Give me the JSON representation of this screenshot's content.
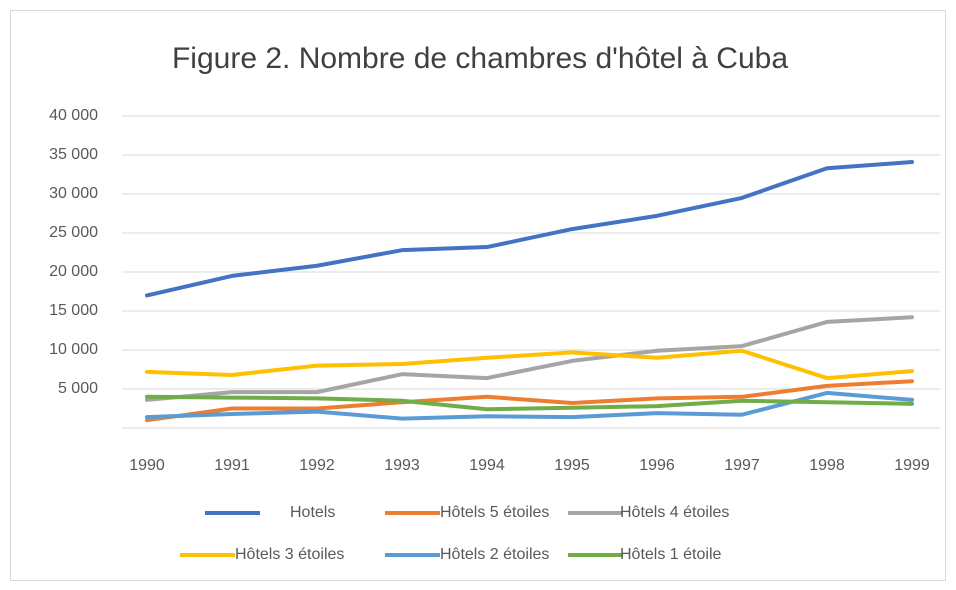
{
  "chart_data": {
    "type": "line",
    "title": "Figure 2. Nombre de chambres d'hôtel à Cuba",
    "categories": [
      "1990",
      "1991",
      "1992",
      "1993",
      "1994",
      "1995",
      "1996",
      "1997",
      "1998",
      "1999"
    ],
    "series": [
      {
        "name": "Hotels",
        "color": "#4472c4",
        "values": [
          17000,
          19500,
          20800,
          22800,
          23200,
          25500,
          27200,
          29500,
          33300,
          34100
        ]
      },
      {
        "name": "Hôtels 5 étoiles",
        "color": "#ed7d31",
        "values": [
          1000,
          2500,
          2500,
          3300,
          4000,
          3200,
          3800,
          4000,
          5400,
          6000
        ]
      },
      {
        "name": "Hôtels 4 étoiles",
        "color": "#a5a5a5",
        "values": [
          3600,
          4600,
          4600,
          6900,
          6400,
          8600,
          9900,
          10500,
          13600,
          14200
        ]
      },
      {
        "name": "Hôtels 3 étoiles",
        "color": "#ffc000",
        "values": [
          7200,
          6800,
          8000,
          8200,
          9000,
          9700,
          9000,
          9900,
          6400,
          7300
        ]
      },
      {
        "name": "Hôtels 2 étoiles",
        "color": "#5b9bd5",
        "values": [
          1400,
          1800,
          2100,
          1200,
          1500,
          1400,
          1900,
          1700,
          4500,
          3600
        ]
      },
      {
        "name": "Hôtels 1 étoile",
        "color": "#70ad47",
        "values": [
          4000,
          3900,
          3800,
          3500,
          2400,
          2600,
          2800,
          3500,
          3300,
          3100
        ]
      }
    ],
    "ylim": [
      0,
      40000
    ],
    "yticks": [
      {
        "value": 5000,
        "label": "5 000"
      },
      {
        "value": 10000,
        "label": "10 000"
      },
      {
        "value": 15000,
        "label": "15 000"
      },
      {
        "value": 20000,
        "label": "20 000"
      },
      {
        "value": 25000,
        "label": "25 000"
      },
      {
        "value": 30000,
        "label": "30 000"
      },
      {
        "value": 35000,
        "label": "35 000"
      },
      {
        "value": 40000,
        "label": "40 000"
      }
    ],
    "grid": true,
    "legend": "bottom"
  }
}
